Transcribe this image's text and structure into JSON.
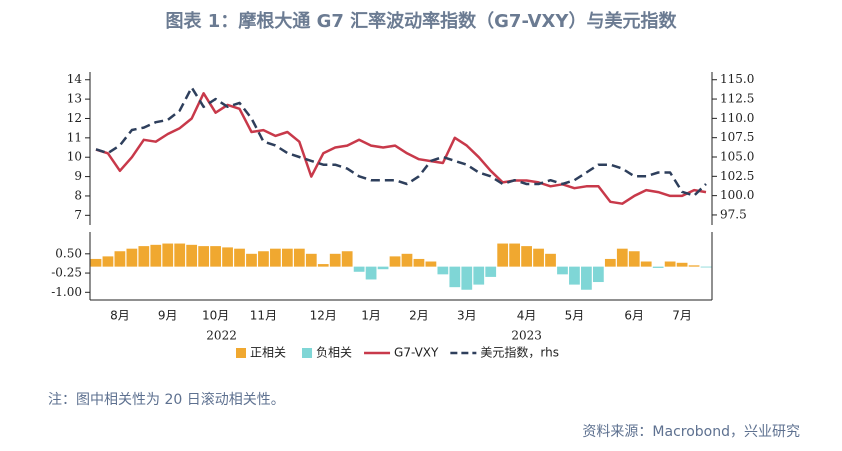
{
  "title": "图表 1：摩根大通 G7 汇率波动率指数（G7-VXY）与美元指数",
  "note": "注：图中相关性为 20 日滚动相关性。",
  "source": "资料来源：Macrobond，兴业研究",
  "chart_data": [
    {
      "type": "line",
      "ylim": [
        6.5,
        14.4
      ],
      "yticks": [
        7,
        8,
        9,
        10,
        11,
        12,
        13,
        14
      ],
      "y2lim": [
        96.2,
        116.0
      ],
      "y2ticks": [
        {
          "value": 115,
          "label": "115.0"
        },
        112.5,
        {
          "value": 110,
          "label": "110.0"
        },
        107.5,
        {
          "value": 105,
          "label": "105.0"
        },
        102.5,
        {
          "value": 100,
          "label": "100.0"
        },
        97.5
      ],
      "series": [
        {
          "name": "G7-VXY",
          "color": "#c8394a",
          "values": [
            10.4,
            10.2,
            9.3,
            10.0,
            10.9,
            10.8,
            11.2,
            11.5,
            12.0,
            13.3,
            12.3,
            12.7,
            12.5,
            11.3,
            11.4,
            11.1,
            11.3,
            10.8,
            9.0,
            10.2,
            10.5,
            10.6,
            10.9,
            10.6,
            10.5,
            10.6,
            10.2,
            9.9,
            9.8,
            9.7,
            11.0,
            10.6,
            10.0,
            9.3,
            8.7,
            8.8,
            8.8,
            8.7,
            8.5,
            8.6,
            8.4,
            8.5,
            8.5,
            7.7,
            7.6,
            8.0,
            8.3,
            8.2,
            8.0,
            8.0,
            8.3,
            8.2
          ]
        },
        {
          "name": "美元指数，rhs",
          "color": "#2e3f5c",
          "axis": "y2",
          "values": [
            106.0,
            105.5,
            106.5,
            108.5,
            108.8,
            109.5,
            109.8,
            111.0,
            114.0,
            111.5,
            112.5,
            111.5,
            112.0,
            110.0,
            107.0,
            106.5,
            105.5,
            105.0,
            104.5,
            104.0,
            104.0,
            103.5,
            102.5,
            102.0,
            102.0,
            102.0,
            101.5,
            102.5,
            104.5,
            105.0,
            104.5,
            104.0,
            103.0,
            102.5,
            101.5,
            102.0,
            101.5,
            101.5,
            102.0,
            101.5,
            102.0,
            103.0,
            104.0,
            104.0,
            103.5,
            102.5,
            102.5,
            103.0,
            103.0,
            100.5,
            100.0,
            101.5
          ]
        }
      ]
    },
    {
      "type": "bar",
      "categories": [
        null,
        null,
        "8月",
        null,
        null,
        null,
        "9月",
        null,
        null,
        null,
        "10月",
        null,
        null,
        null,
        "11月",
        null,
        null,
        null,
        null,
        "12月",
        null,
        null,
        null,
        "1月",
        null,
        null,
        null,
        "2月",
        null,
        null,
        null,
        "3月",
        null,
        null,
        null,
        null,
        "4月",
        null,
        null,
        null,
        "5月",
        null,
        null,
        null,
        null,
        "6月",
        null,
        null,
        null,
        "7月",
        null,
        null
      ],
      "x_group_labels": [
        "2022",
        "2023"
      ],
      "ylim": [
        -1.3,
        1.35
      ],
      "yticks": [
        {
          "value": 0.5,
          "label": "0.50"
        },
        -0.25,
        {
          "value": -1,
          "label": "-1.00"
        }
      ],
      "series": [
        {
          "name": "正相关",
          "color": "#f0a830",
          "values": [
            0.3,
            0.4,
            0.6,
            0.7,
            0.8,
            0.85,
            0.9,
            0.9,
            0.85,
            0.8,
            0.8,
            0.75,
            0.7,
            0.5,
            0.6,
            0.7,
            0.7,
            0.7,
            0.5,
            0.1,
            0.5,
            0.6,
            null,
            null,
            null,
            0.4,
            0.5,
            0.3,
            0.2,
            null,
            null,
            null,
            null,
            null,
            0.9,
            0.9,
            0.8,
            0.7,
            0.5,
            null,
            null,
            null,
            null,
            0.3,
            0.7,
            0.6,
            0.2,
            null,
            0.2,
            0.15,
            0.05,
            null
          ]
        },
        {
          "name": "负相关",
          "color": "#7fd6d6",
          "values": [
            null,
            null,
            null,
            null,
            null,
            null,
            null,
            null,
            null,
            null,
            null,
            null,
            null,
            null,
            null,
            null,
            null,
            null,
            null,
            null,
            null,
            null,
            -0.2,
            -0.5,
            -0.1,
            null,
            null,
            null,
            null,
            -0.3,
            -0.8,
            -0.9,
            -0.7,
            -0.4,
            null,
            null,
            null,
            null,
            null,
            -0.3,
            -0.7,
            -0.9,
            -0.6,
            null,
            null,
            null,
            null,
            -0.05,
            null,
            null,
            null,
            -0.03
          ]
        }
      ]
    }
  ]
}
